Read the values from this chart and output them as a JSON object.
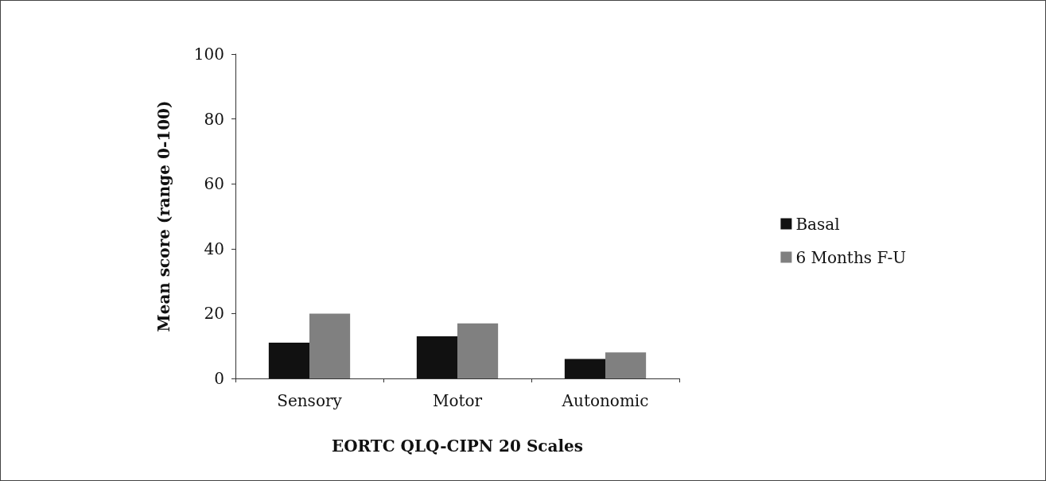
{
  "chart_data": {
    "type": "bar",
    "xlabel": "EORTC QLQ-CIPN 20 Scales",
    "ylabel": "Mean score (range 0-100)",
    "categories": [
      "Sensory",
      "Motor",
      "Autonomic"
    ],
    "series": [
      {
        "name": "Basal",
        "color": "#111111",
        "values": [
          11,
          13,
          6
        ]
      },
      {
        "name": "6 Months F-U",
        "color": "#808080",
        "values": [
          20,
          17,
          8
        ]
      }
    ],
    "ylim": [
      0,
      100
    ],
    "yticks": [
      0,
      20,
      40,
      60,
      80,
      100
    ],
    "grid": false,
    "legend": "right"
  }
}
